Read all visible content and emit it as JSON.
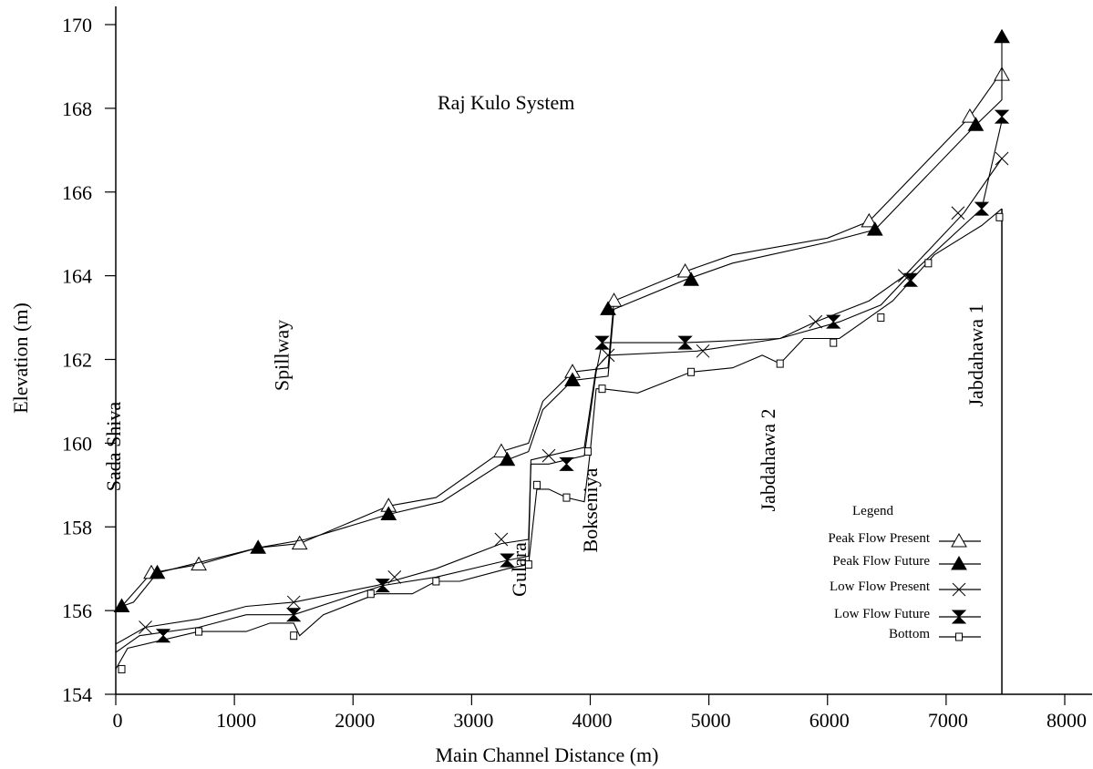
{
  "chart_data": {
    "type": "line",
    "title": "Raj Kulo System",
    "xlabel": "Main Channel Distance (m)",
    "ylabel": "Elevation (m)",
    "xlim": [
      0,
      8000
    ],
    "ylim": [
      154,
      170
    ],
    "xticks": [
      0,
      1000,
      2000,
      3000,
      4000,
      5000,
      6000,
      7000,
      8000
    ],
    "xtick_labels": [
      "0",
      "1000",
      "2000",
      "3000",
      "4000",
      "5000",
      "6000",
      "7000",
      "8000"
    ],
    "yticks": [
      154,
      156,
      158,
      160,
      162,
      164,
      166,
      168,
      170
    ],
    "ytick_labels": [
      "154",
      "156",
      "158",
      "160",
      "162",
      "164",
      "166",
      "168",
      "170"
    ],
    "grid": false,
    "legend_title": "Legend",
    "legend_position": "bottom-right",
    "annotations": [
      {
        "text": "Sada Shiva",
        "x": 230
      },
      {
        "text": "Spillway",
        "x": 1650
      },
      {
        "text": "Gulara",
        "x": 3650
      },
      {
        "text": "Bokseniya",
        "x": 4250
      },
      {
        "text": "Jabdahawa 2",
        "x": 5750
      },
      {
        "text": "Jabdahawa 1",
        "x": 7500
      }
    ],
    "series": [
      {
        "name": "Peak Flow Present",
        "marker": "triangle-open",
        "x": [
          50,
          300,
          700,
          1200,
          1550,
          2300,
          2700,
          3250,
          3480,
          3600,
          3850,
          4150,
          4200,
          4800,
          5200,
          6000,
          6350,
          7200,
          7450,
          7470
        ],
        "y": [
          156.1,
          156.9,
          157.1,
          157.5,
          157.6,
          158.5,
          158.7,
          159.8,
          160.0,
          161.0,
          161.7,
          161.8,
          163.4,
          164.1,
          164.5,
          164.9,
          165.3,
          167.8,
          168.8,
          168.8
        ],
        "marker_x": [
          300,
          700,
          1550,
          2300,
          3250,
          3850,
          4200,
          4800,
          6350,
          7200,
          7470
        ],
        "marker_y": [
          156.9,
          157.1,
          157.6,
          158.5,
          159.8,
          161.7,
          163.4,
          164.1,
          165.3,
          167.8,
          168.8
        ]
      },
      {
        "name": "Peak Flow Future",
        "marker": "triangle-filled",
        "x": [
          50,
          150,
          350,
          1200,
          1600,
          2300,
          2750,
          3300,
          3480,
          3600,
          3850,
          4150,
          4200,
          4800,
          5200,
          6000,
          6400,
          7250,
          7470,
          7470
        ],
        "y": [
          156.1,
          156.2,
          156.9,
          157.5,
          157.7,
          158.3,
          158.6,
          159.6,
          159.8,
          160.8,
          161.5,
          161.6,
          163.2,
          163.9,
          164.3,
          164.8,
          165.1,
          167.6,
          168.2,
          169.7
        ],
        "marker_x": [
          50,
          350,
          1200,
          2300,
          3300,
          3850,
          4150,
          4850,
          6400,
          7250,
          7470
        ],
        "marker_y": [
          156.1,
          156.9,
          157.5,
          158.3,
          159.6,
          161.5,
          163.2,
          163.9,
          165.1,
          167.6,
          169.7
        ]
      },
      {
        "name": "Low Flow Present",
        "marker": "x",
        "x": [
          0,
          250,
          700,
          1100,
          1500,
          2200,
          2700,
          3250,
          3480,
          3500,
          3650,
          3950,
          4050,
          4150,
          4900,
          5600,
          5900,
          6350,
          6650,
          7150,
          7470
        ],
        "y": [
          155.2,
          155.6,
          155.8,
          156.1,
          156.2,
          156.6,
          157.0,
          157.6,
          157.7,
          159.6,
          159.7,
          159.9,
          161.8,
          162.1,
          162.2,
          162.5,
          162.9,
          163.4,
          164.0,
          165.5,
          166.8
        ],
        "marker_x": [
          250,
          1500,
          2350,
          3250,
          3650,
          4150,
          4950,
          5900,
          6650,
          7100,
          7470
        ],
        "marker_y": [
          155.6,
          156.2,
          156.8,
          157.7,
          159.7,
          162.1,
          162.2,
          162.9,
          164.0,
          165.5,
          166.8
        ]
      },
      {
        "name": "Low Flow Future",
        "marker": "hourglass",
        "x": [
          0,
          200,
          700,
          1100,
          1500,
          2250,
          2700,
          3300,
          3480,
          3500,
          3650,
          3950,
          4050,
          4100,
          4800,
          5600,
          6100,
          6450,
          6650,
          7300,
          7470
        ],
        "y": [
          155.0,
          155.4,
          155.6,
          155.9,
          155.9,
          156.6,
          156.8,
          157.2,
          157.3,
          159.5,
          159.5,
          159.7,
          161.7,
          162.4,
          162.4,
          162.5,
          162.9,
          163.3,
          163.9,
          165.6,
          167.7
        ],
        "marker_x": [
          400,
          1500,
          2250,
          3300,
          3800,
          4100,
          4800,
          6050,
          6700,
          7300,
          7470
        ],
        "marker_y": [
          155.4,
          155.9,
          156.6,
          157.2,
          159.5,
          162.4,
          162.4,
          162.9,
          163.9,
          165.6,
          167.8
        ]
      },
      {
        "name": "Bottom",
        "marker": "square-open",
        "x": [
          0,
          100,
          700,
          1100,
          1300,
          1500,
          1550,
          1750,
          2200,
          2500,
          2700,
          2900,
          3300,
          3480,
          3550,
          3650,
          3800,
          3950,
          4000,
          4050,
          4100,
          4400,
          4850,
          5200,
          5450,
          5600,
          5800,
          6100,
          6300,
          6550,
          6900,
          7300,
          7470
        ],
        "y": [
          154.6,
          155.1,
          155.5,
          155.5,
          155.7,
          155.7,
          155.4,
          155.9,
          156.4,
          156.4,
          156.7,
          156.7,
          157.0,
          157.1,
          158.9,
          158.9,
          158.7,
          158.6,
          159.8,
          161.3,
          161.3,
          161.2,
          161.7,
          161.8,
          162.1,
          161.9,
          162.5,
          162.5,
          162.9,
          163.4,
          164.5,
          165.2,
          165.6
        ],
        "marker_x": [
          50,
          700,
          1500,
          2150,
          2700,
          3480,
          3550,
          3800,
          3980,
          4100,
          4850,
          5600,
          6050,
          6450,
          6850,
          7450
        ],
        "marker_y": [
          154.6,
          155.5,
          155.4,
          156.4,
          156.7,
          157.1,
          159.0,
          158.7,
          159.8,
          161.3,
          161.7,
          161.9,
          162.4,
          163.0,
          164.3,
          165.4
        ]
      }
    ]
  }
}
